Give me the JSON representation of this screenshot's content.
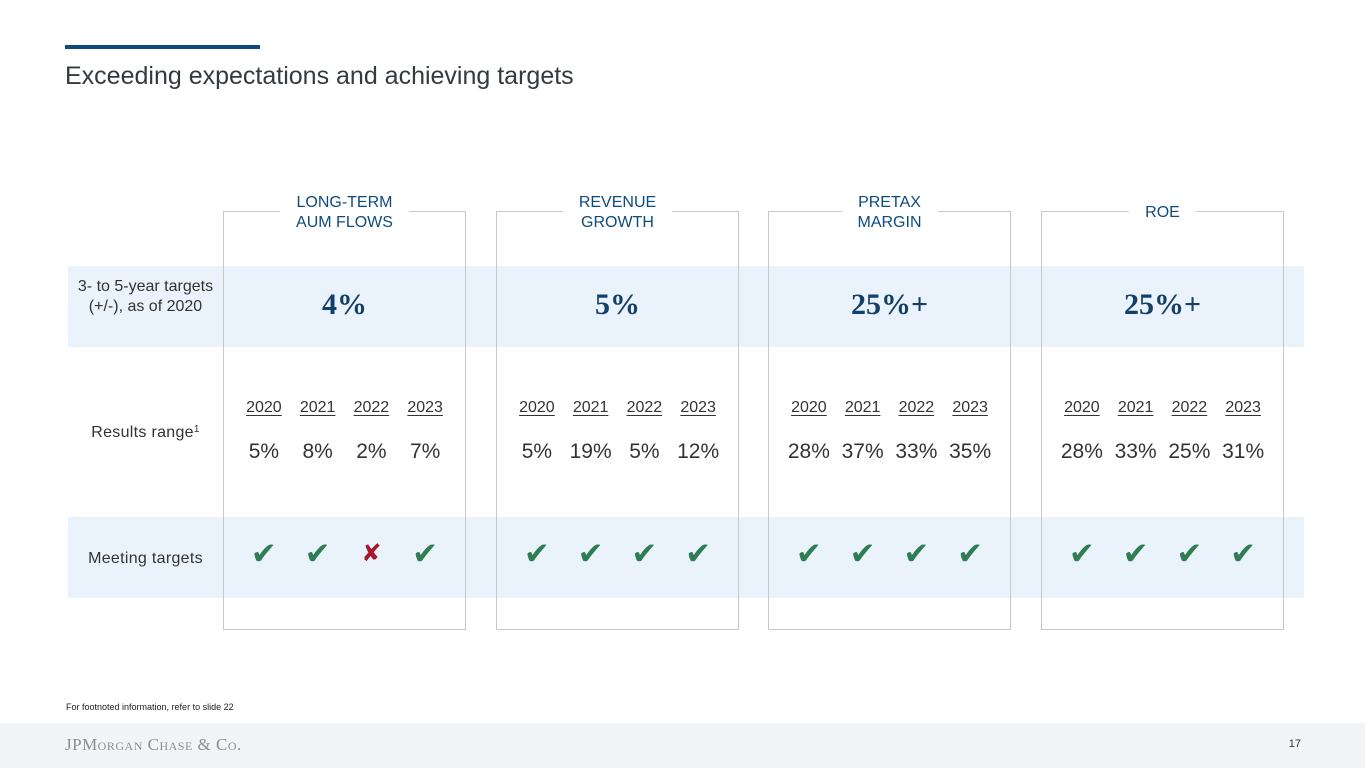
{
  "title": "Exceeding expectations and achieving targets",
  "row_labels": {
    "targets": "3- to 5-year targets (+/-), as of 2020",
    "results": "Results range",
    "results_sup": "1",
    "meeting": "Meeting targets"
  },
  "columns": [
    {
      "header": "LONG-TERM\nAUM FLOWS",
      "target": "4%",
      "years": [
        "2020",
        "2021",
        "2022",
        "2023"
      ],
      "values": [
        "5%",
        "8%",
        "2%",
        "7%"
      ],
      "met": [
        "✔",
        "✔",
        "✘",
        "✔"
      ]
    },
    {
      "header": "REVENUE\nGROWTH",
      "target": "5%",
      "years": [
        "2020",
        "2021",
        "2022",
        "2023"
      ],
      "values": [
        "5%",
        "19%",
        "5%",
        "12%"
      ],
      "met": [
        "✔",
        "✔",
        "✔",
        "✔"
      ]
    },
    {
      "header": "PRETAX\nMARGIN",
      "target": "25%+",
      "years": [
        "2020",
        "2021",
        "2022",
        "2023"
      ],
      "values": [
        "28%",
        "37%",
        "33%",
        "35%"
      ],
      "met": [
        "✔",
        "✔",
        "✔",
        "✔"
      ]
    },
    {
      "header": "ROE",
      "target": "25%+",
      "years": [
        "2020",
        "2021",
        "2022",
        "2023"
      ],
      "values": [
        "28%",
        "33%",
        "25%",
        "31%"
      ],
      "met": [
        "✔",
        "✔",
        "✔",
        "✔"
      ]
    }
  ],
  "footnote": "For footnoted information, refer to slide 22",
  "footer": {
    "logo": "JPMorgan Chase & Co.",
    "page_number": "17"
  },
  "colors": {
    "accent": "#0e4a7e",
    "band": "#eaf3fb",
    "check": "#2f7d52",
    "cross": "#a8162e"
  }
}
